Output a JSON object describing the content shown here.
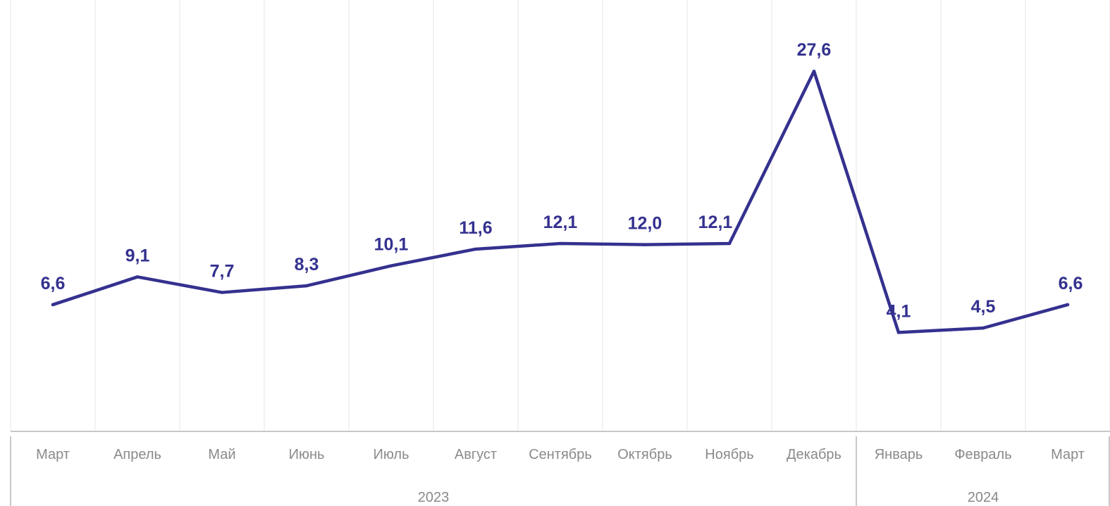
{
  "chart_data": {
    "type": "line",
    "categories": [
      "Март",
      "Апрель",
      "Май",
      "Июнь",
      "Июль",
      "Август",
      "Сентябрь",
      "Октябрь",
      "Ноябрь",
      "Декабрь",
      "Январь",
      "Февраль",
      "Март"
    ],
    "series": [
      {
        "values": [
          6.6,
          9.1,
          7.7,
          8.3,
          10.1,
          11.6,
          12.1,
          12.0,
          12.1,
          27.6,
          4.1,
          4.5,
          6.6
        ],
        "labels": [
          "6,6",
          "9,1",
          "7,7",
          "8,3",
          "10,1",
          "11,6",
          "12,1",
          "12,0",
          "12,1",
          "27,6",
          "4,1",
          "4,5",
          "6,6"
        ]
      }
    ],
    "year_groups": [
      {
        "label": "2023",
        "start": 0,
        "end": 9
      },
      {
        "label": "2024",
        "start": 10,
        "end": 12
      }
    ],
    "ylim": [
      -4.8,
      30.4
    ],
    "grid": "vertical",
    "colors": {
      "line": "#34318f",
      "grid": "#e6e6e6",
      "axis": "#c8c8c8",
      "tick_text": "#8a8a8a"
    }
  }
}
